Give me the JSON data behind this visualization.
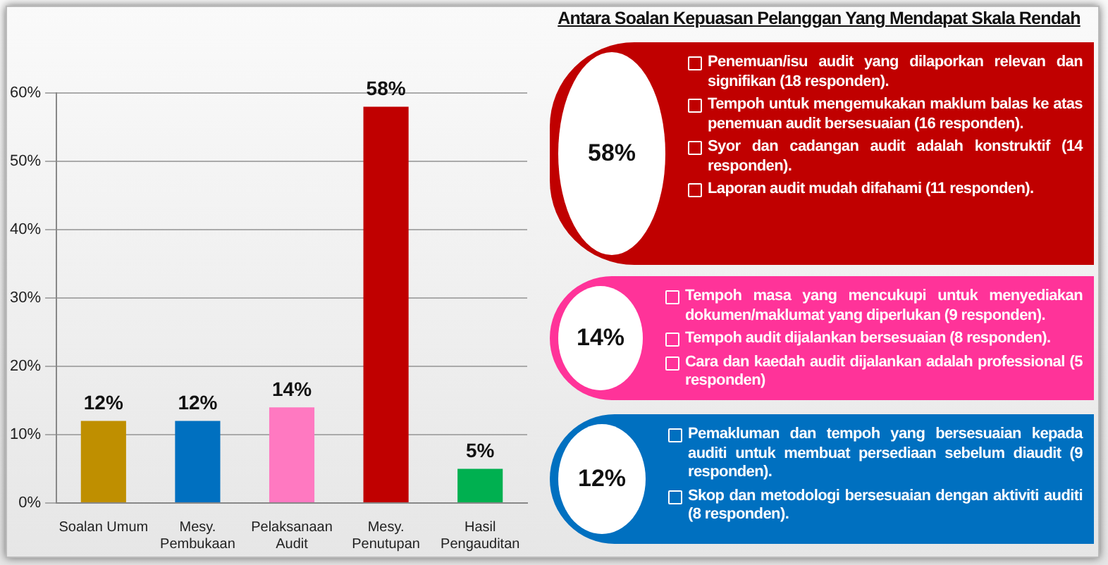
{
  "chart_data": {
    "type": "bar",
    "categories": [
      "Soalan Umum",
      "Mesy. Pembukaan",
      "Pelaksanaan Audit",
      "Mesy. Penutupan",
      "Hasil Pengauditan"
    ],
    "values": [
      12,
      12,
      14,
      58,
      5
    ],
    "colors": [
      "#bf8f00",
      "#0070c0",
      "#ff79c1",
      "#c00000",
      "#00b050"
    ],
    "value_labels": [
      "12%",
      "12%",
      "14%",
      "58%",
      "5%"
    ],
    "ylim": [
      0,
      60
    ],
    "yticks": [
      {
        "value": 0,
        "label": "0%"
      },
      {
        "value": 10,
        "label": "10%"
      },
      {
        "value": 20,
        "label": "20%"
      },
      {
        "value": 30,
        "label": "30%"
      },
      {
        "value": 40,
        "label": "40%"
      },
      {
        "value": 50,
        "label": "50%"
      },
      {
        "value": 60,
        "label": "60%"
      }
    ],
    "grid": "y",
    "legend": false,
    "annotations": [
      "Antara Soalan Kepuasan Pelanggan Yang Mendapat Skala Rendah",
      "58%",
      "Penemuan/isu audit yang dilaporkan relevan dan signifikan (18 responden).",
      "Tempoh untuk mengemukakan maklum balas ke atas penemuan audit bersesuaian (16 responden).",
      "Syor dan cadangan audit adalah konstruktif (14 responden).",
      "Laporan audit mudah difahami (11 responden).",
      "14%",
      "Tempoh masa yang mencukupi untuk menyediakan dokumen/maklumat yang diperlukan (9 responden).",
      "Tempoh audit dijalankan bersesuaian (8 responden).",
      "Cara dan kaedah audit dijalankan adalah professional (5 responden)",
      "12%",
      "Pemakluman dan tempoh yang bersesuaian kepada auditi untuk membuat persediaan sebelum diaudit (9 responden).",
      "Skop dan metodologi bersesuaian dengan aktiviti auditi (8 responden)."
    ]
  }
}
